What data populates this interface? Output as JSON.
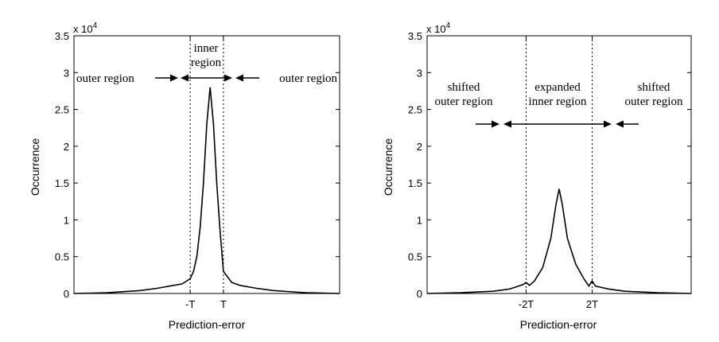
{
  "chart_data": [
    {
      "type": "line",
      "title": "",
      "xlabel": "Prediction-error",
      "ylabel": "Occurrence",
      "y_multiplier": "x 10",
      "y_multiplier_exp": "4",
      "ylim": [
        0,
        3.5
      ],
      "yticks": [
        "0",
        "0.5",
        "1",
        "1.5",
        "2",
        "2.5",
        "3",
        "3.5"
      ],
      "xlim": [
        -8,
        8
      ],
      "xticks": [
        {
          "value": -1,
          "label": "-T"
        },
        {
          "value": 1,
          "label": "T"
        }
      ],
      "threshold_lines": [
        -1,
        1
      ],
      "grid": false,
      "annotations": {
        "inner": [
          "inner",
          "region"
        ],
        "outer_left": "outer region",
        "outer_right": "outer region"
      },
      "series": [
        {
          "x": [
            -8,
            -6,
            -4,
            -3,
            -2,
            -1.5,
            -1,
            -0.8,
            -0.6,
            -0.4,
            -0.2,
            0,
            0.2,
            0.4,
            0.6,
            0.8,
            1,
            1.5,
            2,
            3,
            4,
            6,
            8
          ],
          "y": [
            0.0,
            0.01,
            0.04,
            0.07,
            0.11,
            0.13,
            0.2,
            0.3,
            0.5,
            0.9,
            1.5,
            2.3,
            2.8,
            2.3,
            1.5,
            0.85,
            0.3,
            0.15,
            0.11,
            0.07,
            0.04,
            0.01,
            0.0
          ]
        }
      ]
    },
    {
      "type": "line",
      "title": "",
      "xlabel": "Prediction-error",
      "ylabel": "Occurrence",
      "y_multiplier": "x 10",
      "y_multiplier_exp": "4",
      "ylim": [
        0,
        3.5
      ],
      "yticks": [
        "0",
        "0.5",
        "1",
        "1.5",
        "2",
        "2.5",
        "3",
        "3.5"
      ],
      "xlim": [
        -8,
        8
      ],
      "xticks": [
        {
          "value": -2,
          "label": "-2T"
        },
        {
          "value": 2,
          "label": "2T"
        }
      ],
      "threshold_lines": [
        -2,
        2
      ],
      "grid": false,
      "annotations": {
        "left": [
          "shifted",
          "outer region"
        ],
        "center": [
          "expanded",
          "inner region"
        ],
        "right": [
          "shifted",
          "outer region"
        ]
      },
      "series": [
        {
          "x": [
            -8,
            -6,
            -4,
            -3,
            -2.2,
            -2,
            -1.8,
            -1.5,
            -1,
            -0.5,
            -0.2,
            0,
            0.2,
            0.5,
            1,
            1.5,
            1.8,
            2,
            2.2,
            3,
            4,
            6,
            8
          ],
          "y": [
            0.0,
            0.01,
            0.03,
            0.06,
            0.12,
            0.15,
            0.11,
            0.17,
            0.35,
            0.75,
            1.2,
            1.42,
            1.2,
            0.75,
            0.4,
            0.2,
            0.1,
            0.17,
            0.1,
            0.06,
            0.03,
            0.01,
            0.0
          ]
        }
      ]
    }
  ]
}
